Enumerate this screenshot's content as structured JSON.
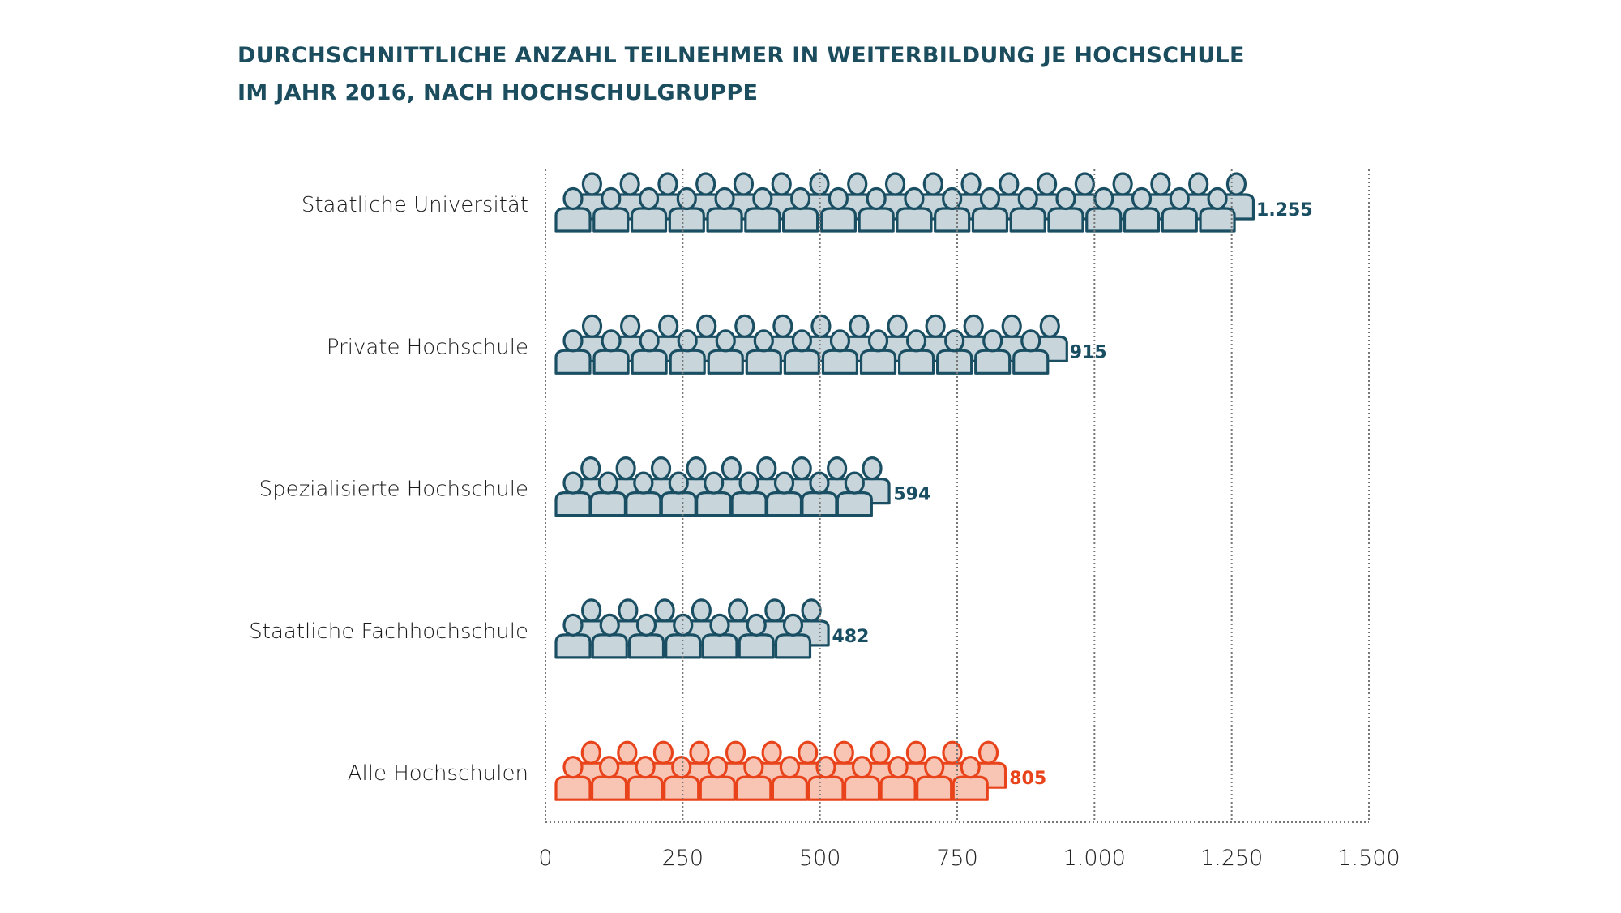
{
  "colors": {
    "title": "#1b4d5e",
    "default_stroke": "#1a4f63",
    "default_fill": "#c8d6dc",
    "highlight_stroke": "#e8431a",
    "highlight_fill": "#f8c4b4",
    "grid": "#777777"
  },
  "chart_data": {
    "type": "bar",
    "orientation": "horizontal",
    "mark": "pictogram-people-icons",
    "title": "DURCHSCHNITTLICHE ANZAHL TEILNEHMER IN WEITERBILDUNG JE HOCHSCHULE IM JAHR 2016, NACH HOCHSCHULGRUPPE",
    "title_lines": [
      "DURCHSCHNITTLICHE ANZAHL TEILNEHMER IN WEITERBILDUNG JE HOCHSCHULE",
      "IM JAHR 2016, NACH HOCHSCHULGRUPPE"
    ],
    "categories": [
      "Staatliche Universität",
      "Private Hochschule",
      "Spezialisierte Hochschule",
      "Staatliche Fachhochschule",
      "Alle Hochschulen"
    ],
    "values": [
      1255,
      915,
      594,
      482,
      805
    ],
    "value_labels": [
      "1.255",
      "915",
      "594",
      "482",
      "805"
    ],
    "highlight": [
      false,
      false,
      false,
      false,
      true
    ],
    "xlabel": "",
    "ylabel": "",
    "xlim": [
      0,
      1500
    ],
    "xticks": [
      0,
      250,
      500,
      750,
      1000,
      1250,
      1500
    ],
    "xtick_labels": [
      "0",
      "250",
      "500",
      "750",
      "1.000",
      "1.250",
      "1.500"
    ],
    "grid": "vertical dotted",
    "legend": "none"
  }
}
